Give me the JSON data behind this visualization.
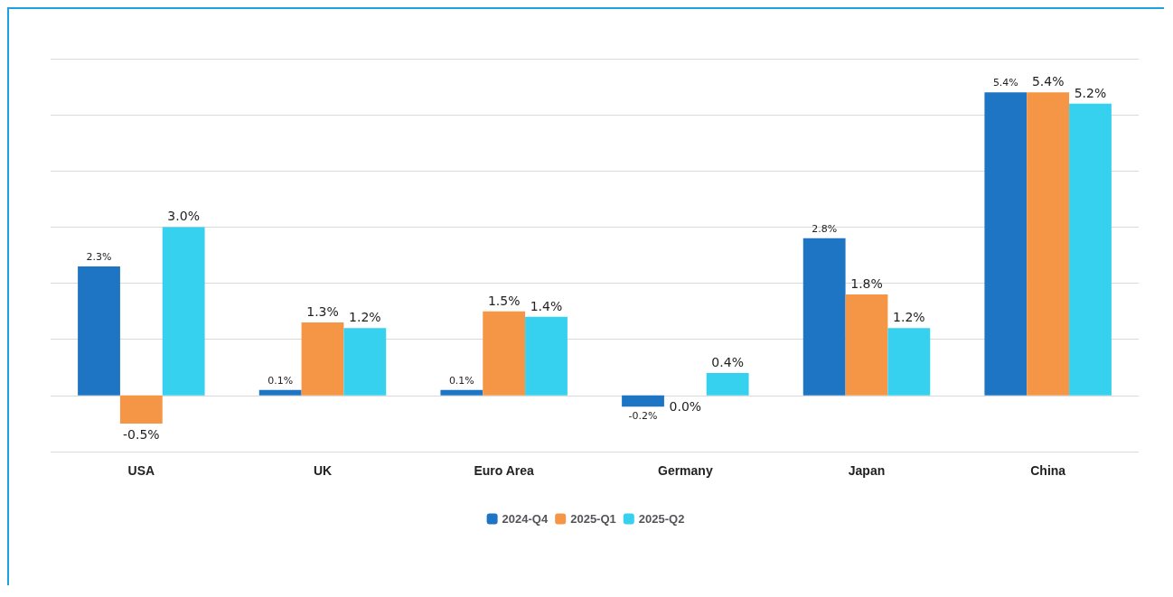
{
  "chart_data": {
    "type": "bar",
    "categories": [
      "USA",
      "UK",
      "Euro Area",
      "Germany",
      "Japan",
      "China"
    ],
    "series": [
      {
        "name": "2024-Q4",
        "color": "#1e75c3",
        "values": [
          2.3,
          0.1,
          0.1,
          -0.2,
          2.8,
          5.4
        ],
        "value_labels": [
          "2.3%",
          "0.1%",
          "0.1%",
          "-0.2%",
          "2.8%",
          "5.4%"
        ]
      },
      {
        "name": "2025-Q1",
        "color": "#f59646",
        "values": [
          -0.5,
          1.3,
          1.5,
          0.0,
          1.8,
          5.4
        ],
        "value_labels": [
          "-0.5%",
          "1.3%",
          "1.5%",
          "0.0%",
          "1.8%",
          "5.4%"
        ]
      },
      {
        "name": "2025-Q2",
        "color": "#36d1ef",
        "values": [
          3.0,
          1.2,
          1.4,
          0.4,
          1.2,
          5.2
        ],
        "value_labels": [
          "3.0%",
          "1.2%",
          "1.4%",
          "0.4%",
          "1.2%",
          "5.2%"
        ]
      }
    ],
    "ylim": [
      -1,
      6
    ],
    "yticks": [
      {
        "value": -1,
        "label": null
      },
      {
        "value": 0,
        "label": null
      },
      {
        "value": 1,
        "label": null
      },
      {
        "value": 2,
        "label": null
      },
      {
        "value": 3,
        "label": null
      },
      {
        "value": 4,
        "label": null
      },
      {
        "value": 5,
        "label": null
      },
      {
        "value": 6,
        "label": null
      }
    ],
    "tick_labels": "x",
    "grid": "y",
    "legend": "bottom"
  }
}
